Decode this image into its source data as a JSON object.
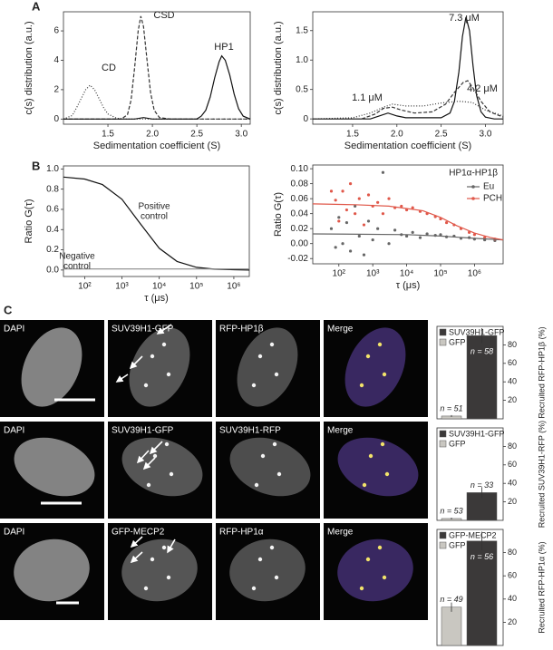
{
  "figure": {
    "panel_labels": [
      "A",
      "B",
      "C"
    ]
  },
  "chart_data": [
    {
      "type": "line",
      "xlabel": "Sedimentation coefficient (S)",
      "ylabel": "c(s) distribution (a.u.)",
      "xlim": [
        1.0,
        3.1
      ],
      "ylim": [
        -0.35,
        7.3
      ],
      "xticks": [
        {
          "value": 1.5,
          "label": "1.5"
        },
        {
          "value": 2.0,
          "label": "2.0"
        },
        {
          "value": 2.5,
          "label": "2.5"
        },
        {
          "value": 3.0,
          "label": "3.0"
        }
      ],
      "yticks": [
        0,
        2,
        4,
        6
      ],
      "series": [
        {
          "color": "#333333",
          "dash": "dotted",
          "x": [
            1.0,
            1.1,
            1.15,
            1.2,
            1.25,
            1.3,
            1.35,
            1.4,
            1.45,
            1.5,
            1.6,
            1.7,
            3.1
          ],
          "values": [
            0,
            0.25,
            0.8,
            1.4,
            2.0,
            2.3,
            2.0,
            1.4,
            0.8,
            0.35,
            0.05,
            0,
            0
          ]
        },
        {
          "color": "#333333",
          "dash": "dashed",
          "x": [
            1.0,
            1.65,
            1.72,
            1.76,
            1.8,
            1.84,
            1.87,
            1.9,
            1.94,
            1.98,
            2.02,
            2.08,
            2.2,
            3.1
          ],
          "values": [
            0,
            0,
            0.3,
            1.3,
            3.5,
            6.0,
            7.0,
            6.3,
            4.0,
            1.8,
            0.6,
            0.1,
            0,
            0
          ]
        },
        {
          "color": "#111111",
          "dash": "solid",
          "x": [
            1.0,
            1.8,
            1.9,
            2.0,
            2.5,
            2.55,
            2.6,
            2.65,
            2.7,
            2.75,
            2.78,
            2.82,
            2.87,
            2.92,
            2.97,
            3.02,
            3.1
          ],
          "values": [
            0,
            0,
            0.1,
            0,
            0,
            0.2,
            0.6,
            1.5,
            2.8,
            3.9,
            4.3,
            4.0,
            3.0,
            1.7,
            0.7,
            0.2,
            0
          ]
        }
      ],
      "annotations": [
        "CD",
        "CSD",
        "HP1"
      ]
    },
    {
      "type": "line",
      "xlabel": "Sedimentation coefficient (S)",
      "ylabel": "c(s) distribution (a.u.)",
      "xlim": [
        1.05,
        3.2
      ],
      "ylim": [
        -0.09,
        1.82
      ],
      "xticks": [
        {
          "value": 1.5,
          "label": "1.5"
        },
        {
          "value": 2.0,
          "label": "2.0"
        },
        {
          "value": 2.5,
          "label": "2.5"
        },
        {
          "value": 3.0,
          "label": "3.0"
        }
      ],
      "yticks": [
        0,
        0.5,
        {
          "value": 1.0,
          "label": "1.0"
        },
        1.5
      ],
      "series": [
        {
          "color": "#111111",
          "dash": "solid",
          "x": [
            1.05,
            1.7,
            1.8,
            1.9,
            2.0,
            2.1,
            2.5,
            2.6,
            2.65,
            2.7,
            2.74,
            2.78,
            2.82,
            2.86,
            2.9,
            2.95,
            3.0,
            3.1,
            3.2
          ],
          "values": [
            0,
            0,
            0.05,
            0.1,
            0.05,
            0.02,
            0.02,
            0.1,
            0.3,
            0.8,
            1.4,
            1.73,
            1.5,
            0.9,
            0.4,
            0.12,
            0.03,
            0,
            0
          ]
        },
        {
          "color": "#333333",
          "dash": "dashed",
          "x": [
            1.05,
            1.6,
            1.75,
            1.85,
            1.95,
            2.05,
            2.2,
            2.4,
            2.55,
            2.65,
            2.75,
            2.8,
            2.85,
            2.95,
            3.05,
            3.2
          ],
          "values": [
            0,
            0,
            0.08,
            0.18,
            0.2,
            0.15,
            0.1,
            0.12,
            0.25,
            0.45,
            0.62,
            0.65,
            0.55,
            0.3,
            0.12,
            0.03
          ]
        },
        {
          "color": "#333333",
          "dash": "dotted",
          "x": [
            1.05,
            1.5,
            1.7,
            1.85,
            1.95,
            2.1,
            2.3,
            2.5,
            2.7,
            2.85,
            3.0,
            3.2
          ],
          "values": [
            0,
            0.02,
            0.1,
            0.2,
            0.25,
            0.22,
            0.22,
            0.27,
            0.3,
            0.28,
            0.15,
            0.05
          ]
        }
      ],
      "annotations": [
        "1.1 μM",
        "7.3 μM",
        "4.2 μM"
      ]
    },
    {
      "type": "line",
      "xlabel": "τ (μs)",
      "ylabel": "Ratio G(τ)",
      "xscale": "log",
      "xlim": [
        27,
        2600000
      ],
      "ylim": [
        -0.064,
        1.03
      ],
      "xticks": [
        {
          "value": 100,
          "label": "10²"
        },
        {
          "value": 1000,
          "label": "10³"
        },
        {
          "value": 10000,
          "label": "10⁴"
        },
        {
          "value": 100000,
          "label": "10⁵"
        },
        {
          "value": 1000000,
          "label": "10⁶"
        }
      ],
      "yticks": [
        {
          "value": 0,
          "label": "0.0"
        },
        0.2,
        0.4,
        0.6,
        0.8,
        {
          "value": 1.0,
          "label": "1.0"
        }
      ],
      "series": [
        {
          "color": "#111111",
          "dash": "solid",
          "x": [
            27,
            100,
            300,
            1000,
            3000,
            10000,
            30000,
            100000,
            300000,
            1000000,
            2600000
          ],
          "values": [
            0.92,
            0.9,
            0.845,
            0.7,
            0.465,
            0.215,
            0.085,
            0.027,
            0.009,
            0.003,
            0
          ]
        },
        {
          "color": "#888888",
          "dash": "solid",
          "x": [
            27,
            2600000
          ],
          "values": [
            0.01,
            0.01
          ]
        }
      ],
      "annotations": [
        [
          "Positive",
          "control"
        ],
        [
          "Negative",
          "control"
        ]
      ]
    },
    {
      "type": "line",
      "xlabel": "τ (μs)",
      "ylabel": "Ratio G(τ)",
      "xscale": "log",
      "title": "HP1α-HP1β",
      "xlim": [
        17,
        7000000
      ],
      "ylim": [
        -0.027,
        0.105
      ],
      "xticks": [
        {
          "value": 100,
          "label": "10²"
        },
        {
          "value": 1000,
          "label": "10³"
        },
        {
          "value": 10000,
          "label": "10⁴"
        },
        {
          "value": 100000,
          "label": "10⁵"
        },
        {
          "value": 1000000,
          "label": "10⁶"
        }
      ],
      "yticks": [
        -0.02,
        {
          "value": 0,
          "label": "0.00"
        },
        0.02,
        0.04,
        0.06,
        0.08,
        {
          "value": 0.1,
          "label": "0.10"
        }
      ],
      "series": [
        {
          "name": "Eu",
          "color": "#666666",
          "style": "markers",
          "x": [
            60,
            80,
            100,
            130,
            170,
            220,
            300,
            400,
            550,
            750,
            1000,
            1400,
            2000,
            3000,
            4500,
            7000,
            10000,
            15000,
            25000,
            40000,
            70000,
            100000,
            150000,
            250000,
            400000,
            700000,
            1000000,
            2000000,
            4000000
          ],
          "values": [
            0.02,
            -0.005,
            0.035,
            0.0,
            0.028,
            -0.01,
            0.05,
            0.01,
            -0.015,
            0.03,
            0.005,
            0.02,
            0.095,
            0.0,
            0.018,
            0.012,
            0.01,
            0.015,
            0.008,
            0.013,
            0.011,
            0.012,
            0.009,
            0.01,
            0.007,
            0.008,
            0.006,
            0.005,
            0.004
          ]
        },
        {
          "name": "PCH",
          "color": "#e0584a",
          "style": "markers",
          "x": [
            60,
            80,
            100,
            130,
            170,
            220,
            300,
            400,
            550,
            750,
            1000,
            1400,
            2000,
            3000,
            4500,
            7000,
            10000,
            15000,
            25000,
            40000,
            70000,
            100000,
            150000,
            250000,
            400000,
            700000,
            1000000,
            2000000,
            4000000
          ],
          "values": [
            0.07,
            0.058,
            0.03,
            0.07,
            0.045,
            0.08,
            0.04,
            0.06,
            0.025,
            0.065,
            0.05,
            0.055,
            0.04,
            0.06,
            0.048,
            0.05,
            0.045,
            0.048,
            0.043,
            0.04,
            0.036,
            0.033,
            0.028,
            0.025,
            0.02,
            0.015,
            0.012,
            0.008,
            0.006
          ]
        },
        {
          "color": "#666666",
          "dash": "solid",
          "x": [
            17,
            10000,
            100000,
            1000000,
            7000000
          ],
          "values": [
            0.013,
            0.012,
            0.01,
            0.007,
            0.005
          ]
        },
        {
          "color": "#e0584a",
          "dash": "solid",
          "x": [
            17,
            300,
            3000,
            30000,
            100000,
            300000,
            1000000,
            3000000,
            7000000
          ],
          "values": [
            0.053,
            0.052,
            0.05,
            0.044,
            0.035,
            0.024,
            0.014,
            0.008,
            0.005
          ]
        }
      ]
    },
    {
      "type": "bar",
      "ylabel": "Recruited RFP-HP1β (%)",
      "categories": [
        "GFP",
        "SUV39H1-GFP"
      ],
      "values": [
        3,
        90
      ],
      "errors": [
        1,
        8
      ],
      "colors": [
        "#c9c7c1",
        "#3b3939"
      ],
      "n_labels": [
        "n = 51",
        "n = 58"
      ],
      "ylim": [
        0,
        100
      ],
      "yticks": [
        20,
        40,
        60,
        80
      ]
    },
    {
      "type": "bar",
      "ylabel": "Recruited SUV39H1-RFP (%)",
      "categories": [
        "GFP",
        "SUV39H1-GFP"
      ],
      "values": [
        2,
        30
      ],
      "errors": [
        1,
        6
      ],
      "colors": [
        "#c9c7c1",
        "#3b3939"
      ],
      "n_labels": [
        "n = 53",
        "n = 33"
      ],
      "ylim": [
        0,
        100
      ],
      "yticks": [
        20,
        40,
        60,
        80
      ]
    },
    {
      "type": "bar",
      "ylabel": "Recruited RFP-HP1α (%)",
      "categories": [
        "GFP",
        "GFP-MECP2"
      ],
      "values": [
        33,
        90
      ],
      "errors": [
        4,
        8
      ],
      "colors": [
        "#c9c7c1",
        "#3b3939"
      ],
      "n_labels": [
        "n = 49",
        "n = 56"
      ],
      "ylim": [
        0,
        100
      ],
      "yticks": [
        20,
        40,
        60,
        80
      ]
    }
  ],
  "microscopy": {
    "rows": [
      [
        "DAPI",
        "SUV39H1-GFP",
        "RFP-HP1β",
        "Merge"
      ],
      [
        "DAPI",
        "SUV39H1-GFP",
        "SUV39H1-RFP",
        "Merge"
      ],
      [
        "DAPI",
        "GFP-MECP2",
        "RFP-HP1α",
        "Merge"
      ]
    ]
  }
}
